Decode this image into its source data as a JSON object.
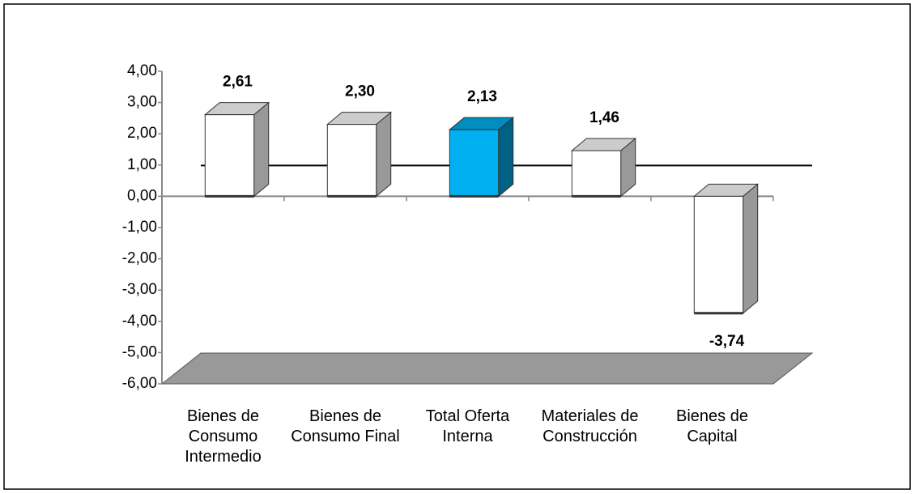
{
  "chart_data": {
    "type": "bar3d",
    "categories": [
      "Bienes de Consumo Intermedio",
      "Bienes de Consumo Final",
      "Total Oferta Interna",
      "Materiales de Construcción",
      "Bienes de Capital"
    ],
    "values": [
      2.61,
      2.3,
      2.13,
      1.46,
      -3.74
    ],
    "value_labels": [
      "2,61",
      "2,30",
      "2,13",
      "1,46",
      "-3,74"
    ],
    "colors": [
      "#ffffff",
      "#ffffff",
      "#00b0f0",
      "#ffffff",
      "#ffffff"
    ],
    "ylim": [
      -6,
      4
    ],
    "yticks": [
      {
        "value": 4,
        "label": "4,00"
      },
      {
        "value": 3,
        "label": "3,00"
      },
      {
        "value": 2,
        "label": "2,00"
      },
      {
        "value": 1,
        "label": "1,00"
      },
      {
        "value": 0,
        "label": "0,00"
      },
      {
        "value": -1,
        "label": "-1,00"
      },
      {
        "value": -2,
        "label": "-2,00"
      },
      {
        "value": -3,
        "label": "-3,00"
      },
      {
        "value": -4,
        "label": "-4,00"
      },
      {
        "value": -5,
        "label": "-5,00"
      },
      {
        "value": -6,
        "label": "-6,00"
      }
    ]
  }
}
